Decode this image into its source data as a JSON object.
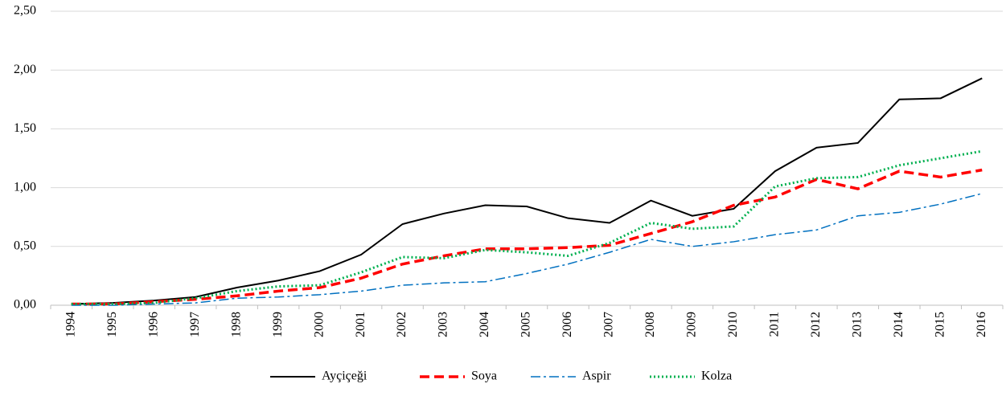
{
  "chart_data": {
    "type": "line",
    "categories": [
      "1994",
      "1995",
      "1996",
      "1997",
      "1998",
      "1999",
      "2000",
      "2001",
      "2002",
      "2003",
      "2004",
      "2005",
      "2006",
      "2007",
      "2008",
      "2009",
      "2010",
      "2011",
      "2012",
      "2013",
      "2014",
      "2015",
      "2016"
    ],
    "series": [
      {
        "name": "Ayçiçeği",
        "color": "#000000",
        "dash": "solid",
        "values": [
          0.01,
          0.02,
          0.04,
          0.07,
          0.15,
          0.21,
          0.29,
          0.43,
          0.69,
          0.78,
          0.85,
          0.84,
          0.74,
          0.7,
          0.89,
          0.76,
          0.82,
          1.14,
          1.34,
          1.38,
          1.75,
          1.76,
          1.93
        ]
      },
      {
        "name": "Soya",
        "color": "#ff0000",
        "dash": "dashed",
        "values": [
          0.01,
          0.01,
          0.03,
          0.05,
          0.08,
          0.12,
          0.15,
          0.23,
          0.35,
          0.42,
          0.48,
          0.48,
          0.49,
          0.51,
          0.61,
          0.71,
          0.85,
          0.92,
          1.07,
          0.99,
          1.14,
          1.09,
          1.15
        ]
      },
      {
        "name": "Aspir",
        "color": "#0070c0",
        "dash": "dashdot",
        "values": [
          0.0,
          0.0,
          0.01,
          0.02,
          0.06,
          0.07,
          0.09,
          0.12,
          0.17,
          0.19,
          0.2,
          0.27,
          0.35,
          0.45,
          0.56,
          0.5,
          0.54,
          0.6,
          0.64,
          0.76,
          0.79,
          0.86,
          0.95
        ]
      },
      {
        "name": "Kolza",
        "color": "#00b050",
        "dash": "dotted",
        "values": [
          0.01,
          0.01,
          0.02,
          0.06,
          0.12,
          0.16,
          0.17,
          0.28,
          0.41,
          0.4,
          0.47,
          0.45,
          0.42,
          0.53,
          0.7,
          0.65,
          0.67,
          1.01,
          1.08,
          1.09,
          1.19,
          1.25,
          1.31
        ]
      }
    ],
    "ylim": [
      0,
      2.5
    ],
    "yticks": [
      {
        "value": 0,
        "label": "0,00"
      },
      {
        "value": 0.5,
        "label": "0,50"
      },
      {
        "value": 1,
        "label": "1,00"
      },
      {
        "value": 1.5,
        "label": "1,50"
      },
      {
        "value": 2,
        "label": "2,00"
      },
      {
        "value": 2.5,
        "label": "2,50"
      }
    ],
    "grid": true,
    "legend": "bottom"
  }
}
